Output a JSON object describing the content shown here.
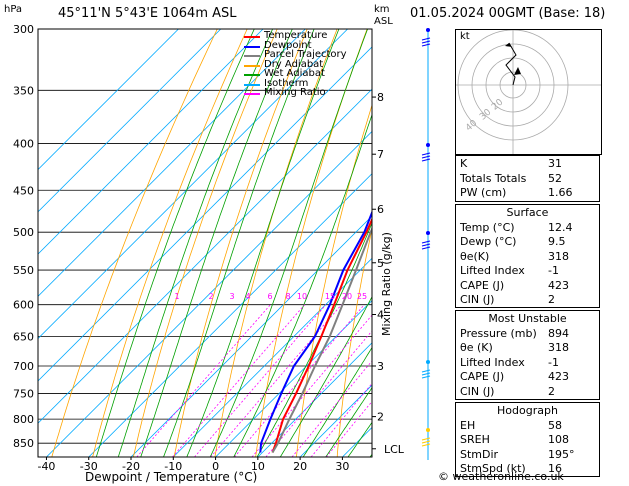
{
  "header": {
    "pressure_unit": "hPa",
    "location": "45°11'N  5°43'E  1064m  ASL",
    "km_label": "km",
    "asl_label": "ASL",
    "datetime": "01.05.2024  00GMT  (Base: 18)"
  },
  "legend": [
    "Temperature",
    "Dewpoint",
    "Parcel Trajectory",
    "Dry Adiabat",
    "Wet Adiabat",
    "Isotherm",
    "Mixing Ratio"
  ],
  "legend_colors": [
    "#ff0000",
    "#0000ff",
    "#808080",
    "#ffa500",
    "#00a000",
    "#00aaff",
    "#ff00ff"
  ],
  "axes": {
    "x_title": "Dewpoint / Temperature (°C)",
    "right_title": "Mixing Ratio (g/kg)",
    "pressure_ticks": [
      "300",
      "350",
      "400",
      "450",
      "500",
      "550",
      "600",
      "650",
      "700",
      "750",
      "800",
      "850"
    ],
    "temp_ticks": [
      "-40",
      "-30",
      "-20",
      "-10",
      "0",
      "10",
      "20",
      "30"
    ],
    "km_ticks": [
      "8",
      "7",
      "6",
      "5",
      "4",
      "3",
      "2"
    ],
    "lcl_label": "LCL",
    "mixing_ratio_labels": [
      "1",
      "2",
      "3",
      "4",
      "6",
      "8",
      "10",
      "15",
      "20",
      "25"
    ]
  },
  "chart_data": {
    "type": "line",
    "title": "",
    "xlabel": "Dewpoint / Temperature (°C)",
    "ylabel": "hPa",
    "ylim": [
      300,
      880
    ],
    "xlim": [
      -42,
      37
    ],
    "y_scale": "log (pressure)",
    "skew": "skewed temperature axis",
    "series": [
      {
        "name": "Temperature",
        "p": [
          870,
          850,
          800,
          750,
          700,
          650,
          600,
          550,
          500,
          450,
          400,
          350,
          300
        ],
        "t": [
          12.4,
          11,
          7,
          4,
          0.5,
          -3.5,
          -8,
          -13,
          -17.5,
          -23,
          -29.5,
          -37.5,
          -46
        ]
      },
      {
        "name": "Dewpoint",
        "p": [
          870,
          850,
          800,
          750,
          700,
          650,
          600,
          550,
          500,
          450,
          400,
          350,
          300
        ],
        "t": [
          9.5,
          7.5,
          4,
          0.5,
          -3,
          -5,
          -9,
          -14,
          -18,
          -24,
          -30.5,
          -38.5,
          -47
        ]
      },
      {
        "name": "Parcel Trajectory",
        "p": [
          870,
          850,
          800,
          750,
          700,
          650,
          600,
          550,
          500,
          450,
          400,
          350,
          300
        ],
        "t": [
          12.4,
          11.5,
          8.5,
          5.5,
          2,
          -1.5,
          -6,
          -11,
          -16.5,
          -22,
          -28.5,
          -36,
          -44.5
        ]
      }
    ]
  },
  "hodograph": {
    "label": "kt",
    "ring_labels": [
      "40",
      "30",
      "20"
    ]
  },
  "indices": {
    "top": [
      {
        "k": "K",
        "v": "31"
      },
      {
        "k": "Totals Totals",
        "v": "52"
      },
      {
        "k": "PW (cm)",
        "v": "1.66"
      }
    ],
    "surface_title": "Surface",
    "surface": [
      {
        "k": "Temp (°C)",
        "v": "12.4"
      },
      {
        "k": "Dewp (°C)",
        "v": "9.5"
      },
      {
        "k": "θe(K)",
        "v": "318"
      },
      {
        "k": "Lifted Index",
        "v": "-1"
      },
      {
        "k": "CAPE (J)",
        "v": "423"
      },
      {
        "k": "CIN (J)",
        "v": "2"
      }
    ],
    "mu_title": "Most Unstable",
    "mu": [
      {
        "k": "Pressure (mb)",
        "v": "894"
      },
      {
        "k": "θe (K)",
        "v": "318"
      },
      {
        "k": "Lifted Index",
        "v": "-1"
      },
      {
        "k": "CAPE (J)",
        "v": "423"
      },
      {
        "k": "CIN (J)",
        "v": "2"
      }
    ],
    "hodo_title": "Hodograph",
    "hodo": [
      {
        "k": "EH",
        "v": "58"
      },
      {
        "k": "SREH",
        "v": "108"
      },
      {
        "k": "StmDir",
        "v": "195°"
      },
      {
        "k": "StmSpd (kt)",
        "v": "16"
      }
    ]
  },
  "copyright": "© weatheronline.co.uk"
}
